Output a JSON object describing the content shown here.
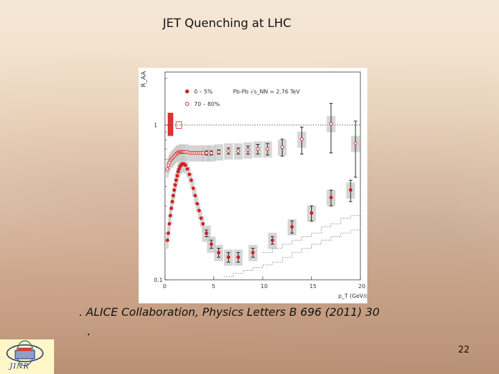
{
  "slide": {
    "title": "JET Quenching at LHC",
    "citation": ". ALICE Collaboration, Physics Letters B 696 (2011) 30",
    "citation_dot": ".",
    "page_number": "22",
    "logo_text": "JINR"
  },
  "colors": {
    "red": "#d42020",
    "band": "#c8c8c8",
    "axis": "#333333",
    "dashed": "#888888"
  },
  "chart_data": {
    "type": "scatter",
    "ylabel": "R_AA",
    "xlabel": "p_T (GeV/c)",
    "yscale": "log",
    "xlim": [
      0,
      20
    ],
    "ylim": [
      0.1,
      2.2
    ],
    "xticks": [
      0,
      5,
      10,
      15,
      20
    ],
    "yticks": [
      {
        "value": 0.1,
        "label": "0.1"
      },
      {
        "value": 1,
        "label": "1"
      }
    ],
    "annotation": "Pb-Pb √s_NN = 2.76 TeV",
    "reference_line": 1,
    "legend": [
      {
        "label": "0 – 5%",
        "marker": "filled"
      },
      {
        "label": "70 – 80%",
        "marker": "open"
      }
    ],
    "series": [
      {
        "name": "0 – 5%",
        "marker": "filled",
        "x": [
          0.25,
          0.35,
          0.45,
          0.55,
          0.65,
          0.75,
          0.85,
          0.95,
          1.05,
          1.15,
          1.25,
          1.35,
          1.45,
          1.55,
          1.65,
          1.75,
          1.85,
          1.95,
          2.1,
          2.3,
          2.5,
          2.7,
          2.9,
          3.1,
          3.3,
          3.5,
          3.7,
          3.9,
          4.25,
          4.75,
          5.5,
          6.5,
          7.5,
          9,
          11,
          13,
          15,
          17,
          19
        ],
        "y": [
          0.18,
          0.2,
          0.23,
          0.26,
          0.29,
          0.32,
          0.35,
          0.38,
          0.41,
          0.44,
          0.47,
          0.5,
          0.52,
          0.54,
          0.55,
          0.56,
          0.56,
          0.56,
          0.55,
          0.52,
          0.48,
          0.44,
          0.39,
          0.35,
          0.31,
          0.28,
          0.25,
          0.23,
          0.2,
          0.17,
          0.15,
          0.14,
          0.14,
          0.15,
          0.18,
          0.22,
          0.27,
          0.34,
          0.38
        ],
        "err": [
          0,
          0,
          0,
          0,
          0,
          0,
          0,
          0,
          0,
          0,
          0,
          0,
          0,
          0,
          0,
          0,
          0,
          0,
          0,
          0,
          0,
          0,
          0,
          0,
          0,
          0,
          0,
          0,
          0.01,
          0.01,
          0.01,
          0.01,
          0.01,
          0.01,
          0.01,
          0.02,
          0.03,
          0.04,
          0.06
        ]
      },
      {
        "name": "70 – 80%",
        "marker": "open",
        "x": [
          0.25,
          0.35,
          0.45,
          0.55,
          0.65,
          0.75,
          0.85,
          0.95,
          1.05,
          1.15,
          1.25,
          1.35,
          1.45,
          1.55,
          1.65,
          1.75,
          1.85,
          1.95,
          2.1,
          2.3,
          2.5,
          2.7,
          2.9,
          3.1,
          3.3,
          3.5,
          3.7,
          3.9,
          4.25,
          4.75,
          5.5,
          6.5,
          7.5,
          8.5,
          9.5,
          10.5,
          12,
          14,
          17,
          19.5
        ],
        "y": [
          0.52,
          0.55,
          0.57,
          0.59,
          0.6,
          0.61,
          0.62,
          0.63,
          0.64,
          0.65,
          0.66,
          0.66,
          0.67,
          0.67,
          0.67,
          0.67,
          0.67,
          0.67,
          0.67,
          0.67,
          0.66,
          0.66,
          0.66,
          0.66,
          0.66,
          0.66,
          0.66,
          0.66,
          0.66,
          0.66,
          0.67,
          0.68,
          0.68,
          0.69,
          0.7,
          0.7,
          0.72,
          0.81,
          1.02,
          0.76
        ],
        "err": [
          0,
          0,
          0,
          0,
          0,
          0,
          0,
          0,
          0,
          0,
          0,
          0,
          0,
          0,
          0,
          0,
          0,
          0,
          0,
          0,
          0,
          0,
          0,
          0,
          0,
          0,
          0,
          0,
          0.02,
          0.02,
          0.02,
          0.03,
          0.03,
          0.04,
          0.05,
          0.06,
          0.09,
          0.16,
          0.36,
          0.3
        ]
      }
    ],
    "dashed_series": [
      {
        "name": "upper-dashed",
        "x": [
          10,
          11,
          12,
          13,
          14,
          15,
          16,
          17,
          18,
          19,
          20
        ],
        "y": [
          0.15,
          0.16,
          0.17,
          0.18,
          0.19,
          0.2,
          0.22,
          0.23,
          0.25,
          0.26,
          0.27
        ]
      },
      {
        "name": "lower-dashed",
        "x": [
          6,
          7,
          8,
          9,
          10,
          11,
          12,
          13,
          14,
          15,
          16,
          17,
          18,
          19,
          20
        ],
        "y": [
          0.105,
          0.11,
          0.115,
          0.12,
          0.125,
          0.13,
          0.14,
          0.15,
          0.16,
          0.17,
          0.18,
          0.19,
          0.2,
          0.21,
          0.22
        ]
      }
    ]
  }
}
